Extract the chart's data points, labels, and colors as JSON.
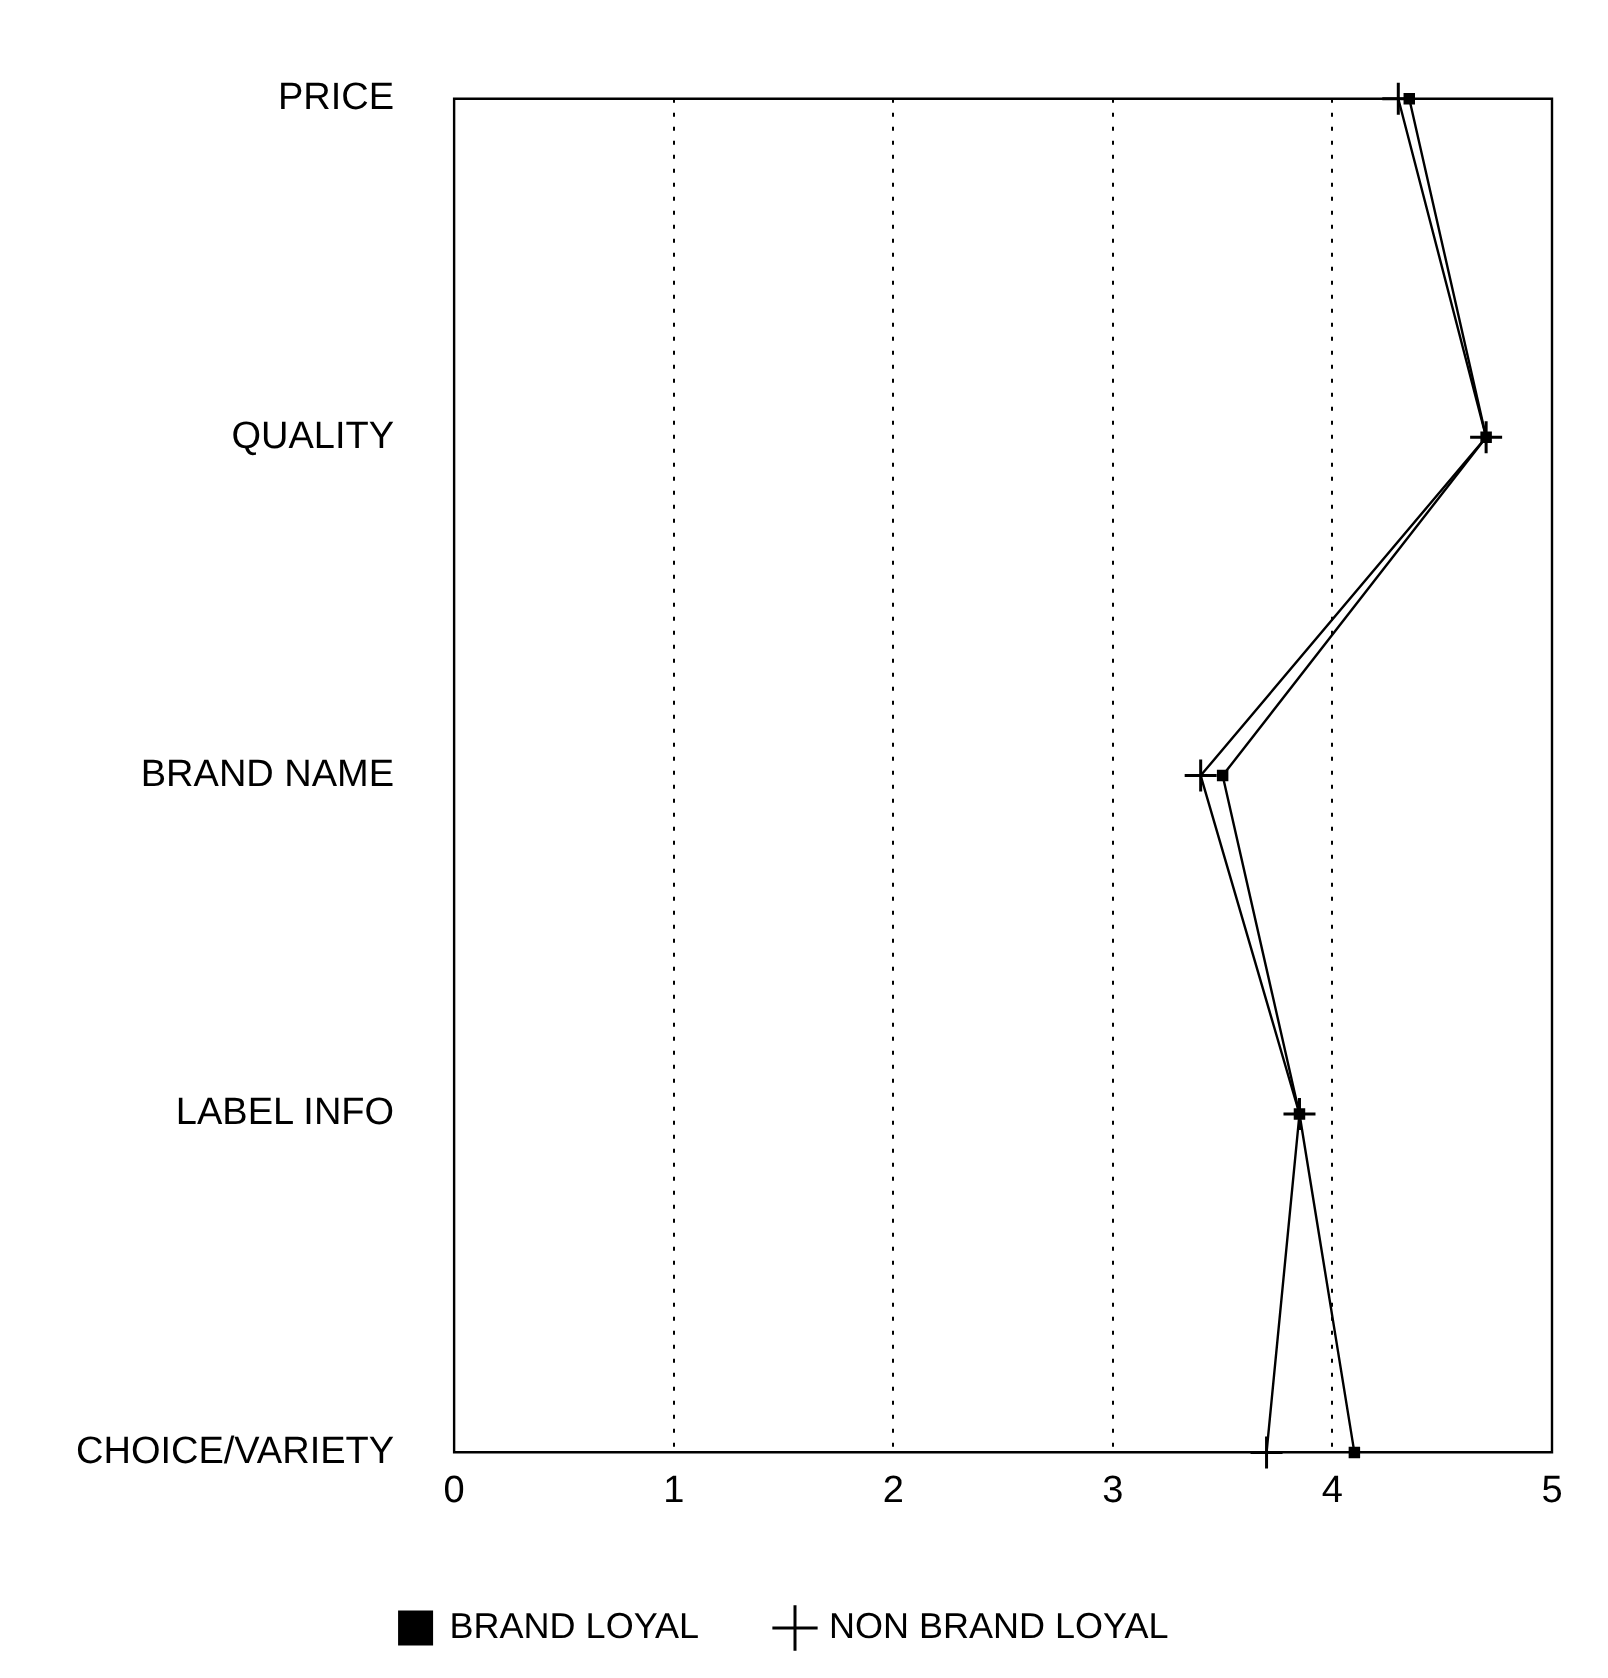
{
  "chart_data": {
    "type": "line",
    "orientation": "horizontal",
    "categories": [
      "PRICE",
      "QUALITY",
      "BRAND NAME",
      "LABEL INFO",
      "CHOICE/VARIETY"
    ],
    "series": [
      {
        "name": "BRAND LOYAL",
        "color": "#000000",
        "marker": "square",
        "values": [
          4.35,
          4.7,
          3.5,
          3.85,
          4.1
        ]
      },
      {
        "name": "NON BRAND LOYAL",
        "color": "#000000",
        "marker": "cross",
        "values": [
          4.3,
          4.7,
          3.4,
          3.85,
          3.7
        ]
      }
    ],
    "xlim": [
      0,
      5
    ],
    "xticks": [
      0,
      1,
      2,
      3,
      4,
      5
    ],
    "grid": "x",
    "legend": "bottom"
  }
}
